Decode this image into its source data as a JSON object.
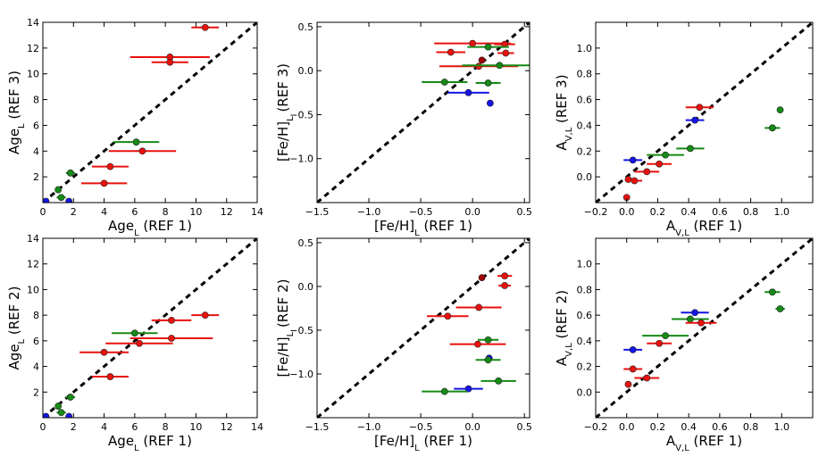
{
  "colors": {
    "red": "#e8120e",
    "green": "#168a16",
    "blue": "#1515e8",
    "darkred": "#a00000",
    "line": "#000000"
  },
  "chart_data": [
    {
      "type": "scatter",
      "xlabel": "Age_L (REF 1)",
      "ylabel": "Age_L (REF 3)",
      "xlim": [
        0,
        14
      ],
      "ylim": [
        0,
        14
      ],
      "xticks": [
        "0",
        "2",
        "4",
        "6",
        "8",
        "10",
        "12",
        "14"
      ],
      "yticks": [
        "2",
        "4",
        "6",
        "8",
        "10",
        "12",
        "14"
      ],
      "points": [
        {
          "x": 10.6,
          "y": 13.6,
          "xerr": 0.9,
          "color": "red"
        },
        {
          "x": 8.3,
          "y": 11.3,
          "xerr": 2.6,
          "color": "red"
        },
        {
          "x": 8.3,
          "y": 10.9,
          "xerr": 1.2,
          "color": "red"
        },
        {
          "x": 6.1,
          "y": 4.7,
          "xerr": 1.5,
          "color": "green"
        },
        {
          "x": 6.5,
          "y": 4.0,
          "xerr": 2.2,
          "color": "red"
        },
        {
          "x": 4.4,
          "y": 2.8,
          "xerr": 1.2,
          "color": "red"
        },
        {
          "x": 4.0,
          "y": 1.5,
          "xerr": 1.5,
          "color": "red"
        },
        {
          "x": 1.8,
          "y": 2.3,
          "xerr": 0.3,
          "color": "green"
        },
        {
          "x": 1.0,
          "y": 1.0,
          "xerr": 0.2,
          "color": "green"
        },
        {
          "x": 1.2,
          "y": 0.4,
          "xerr": 0.3,
          "color": "green"
        },
        {
          "x": 1.7,
          "y": 0.1,
          "xerr": 0.1,
          "color": "blue"
        },
        {
          "x": 0.2,
          "y": 0.1,
          "xerr": 0,
          "color": "blue"
        }
      ]
    },
    {
      "type": "scatter",
      "xlabel": "[Fe/H]_L (REF 1)",
      "ylabel": "[Fe/H]_L (REF 3)",
      "xlim": [
        -1.5,
        0.55
      ],
      "ylim": [
        -1.5,
        0.55
      ],
      "xticks": [
        "-1.5",
        "-1.0",
        "-0.5",
        "0.0",
        "0.5"
      ],
      "yticks": [
        "-1.0",
        "-0.5",
        "0.0",
        "0.5"
      ],
      "points": [
        {
          "x": 0.0,
          "y": 0.31,
          "xerr": 0.37,
          "color": "red"
        },
        {
          "x": 0.31,
          "y": 0.3,
          "xerr": 0.1,
          "color": "red"
        },
        {
          "x": 0.15,
          "y": 0.27,
          "xerr": 0.2,
          "color": "green"
        },
        {
          "x": -0.21,
          "y": 0.21,
          "xerr": 0.14,
          "color": "red"
        },
        {
          "x": 0.32,
          "y": 0.2,
          "xerr": 0.08,
          "color": "red"
        },
        {
          "x": 0.09,
          "y": 0.12,
          "xerr": 0,
          "color": "darkred"
        },
        {
          "x": 0.06,
          "y": 0.05,
          "xerr": 0.38,
          "color": "red"
        },
        {
          "x": 0.26,
          "y": 0.06,
          "xerr": 0.36,
          "color": "green"
        },
        {
          "x": -0.27,
          "y": -0.13,
          "xerr": 0.22,
          "color": "green"
        },
        {
          "x": 0.15,
          "y": -0.14,
          "xerr": 0.12,
          "color": "green"
        },
        {
          "x": -0.04,
          "y": -0.25,
          "xerr": 0.2,
          "color": "blue"
        },
        {
          "x": 0.17,
          "y": -0.37,
          "xerr": 0,
          "color": "blue"
        }
      ]
    },
    {
      "type": "scatter",
      "xlabel": "A_V,L (REF 1)",
      "ylabel": "A_V,L (REF 3)",
      "xlim": [
        -0.2,
        1.2
      ],
      "ylim": [
        -0.2,
        1.2
      ],
      "xticks": [
        "-0.2",
        "0.0",
        "0.2",
        "0.4",
        "0.6",
        "0.8",
        "1.0"
      ],
      "yticks": [
        "0.0",
        "0.2",
        "0.4",
        "0.6",
        "0.8",
        "1.0"
      ],
      "points": [
        {
          "x": 0.47,
          "y": 0.54,
          "xerr": 0.09,
          "color": "red"
        },
        {
          "x": 0.99,
          "y": 0.52,
          "xerr": 0.02,
          "color": "green"
        },
        {
          "x": 0.44,
          "y": 0.44,
          "xerr": 0.06,
          "color": "blue"
        },
        {
          "x": 0.94,
          "y": 0.38,
          "xerr": 0.05,
          "color": "green"
        },
        {
          "x": 0.41,
          "y": 0.22,
          "xerr": 0.09,
          "color": "green"
        },
        {
          "x": 0.25,
          "y": 0.17,
          "xerr": 0.12,
          "color": "green"
        },
        {
          "x": 0.04,
          "y": 0.13,
          "xerr": 0.06,
          "color": "blue"
        },
        {
          "x": 0.21,
          "y": 0.1,
          "xerr": 0.08,
          "color": "red"
        },
        {
          "x": 0.13,
          "y": 0.04,
          "xerr": 0.08,
          "color": "red"
        },
        {
          "x": 0.01,
          "y": -0.02,
          "xerr": 0.02,
          "color": "red"
        },
        {
          "x": 0.05,
          "y": -0.03,
          "xerr": 0.05,
          "color": "red"
        },
        {
          "x": 0.0,
          "y": -0.16,
          "xerr": 0,
          "color": "red"
        }
      ]
    },
    {
      "type": "scatter",
      "xlabel": "Age_L (REF 1)",
      "ylabel": "Age_L (REF 2)",
      "xlim": [
        0,
        14
      ],
      "ylim": [
        0,
        14
      ],
      "xticks": [
        "0",
        "2",
        "4",
        "6",
        "8",
        "10",
        "12",
        "14"
      ],
      "yticks": [
        "2",
        "4",
        "6",
        "8",
        "10",
        "12",
        "14"
      ],
      "points": [
        {
          "x": 10.6,
          "y": 8.0,
          "xerr": 0.9,
          "color": "red"
        },
        {
          "x": 8.4,
          "y": 7.6,
          "xerr": 1.3,
          "color": "red"
        },
        {
          "x": 6.0,
          "y": 6.6,
          "xerr": 1.5,
          "color": "green"
        },
        {
          "x": 8.4,
          "y": 6.2,
          "xerr": 2.7,
          "color": "red"
        },
        {
          "x": 6.3,
          "y": 5.8,
          "xerr": 2.2,
          "color": "red"
        },
        {
          "x": 4.0,
          "y": 5.1,
          "xerr": 1.6,
          "color": "red"
        },
        {
          "x": 4.4,
          "y": 3.2,
          "xerr": 1.2,
          "color": "red"
        },
        {
          "x": 1.8,
          "y": 1.6,
          "xerr": 0.3,
          "color": "green"
        },
        {
          "x": 1.0,
          "y": 0.9,
          "xerr": 0.2,
          "color": "green"
        },
        {
          "x": 1.2,
          "y": 0.4,
          "xerr": 0.3,
          "color": "green"
        },
        {
          "x": 1.7,
          "y": 0.1,
          "xerr": 0.1,
          "color": "blue"
        },
        {
          "x": 0.2,
          "y": 0.1,
          "xerr": 0,
          "color": "blue"
        }
      ]
    },
    {
      "type": "scatter",
      "xlabel": "[Fe/H]_L (REF 1)",
      "ylabel": "[Fe/H]_L (REF 2)",
      "xlim": [
        -1.5,
        0.55
      ],
      "ylim": [
        -1.5,
        0.55
      ],
      "xticks": [
        "-1.5",
        "-1.0",
        "-0.5",
        "0.0",
        "0.5"
      ],
      "yticks": [
        "-1.0",
        "-0.5",
        "0.0",
        "0.5"
      ],
      "points": [
        {
          "x": 0.31,
          "y": 0.12,
          "xerr": 0.07,
          "color": "red"
        },
        {
          "x": 0.09,
          "y": 0.1,
          "xerr": 0,
          "color": "darkred"
        },
        {
          "x": 0.31,
          "y": 0.01,
          "xerr": 0.06,
          "color": "red"
        },
        {
          "x": 0.06,
          "y": -0.24,
          "xerr": 0.22,
          "color": "red"
        },
        {
          "x": -0.24,
          "y": -0.34,
          "xerr": 0.2,
          "color": "red"
        },
        {
          "x": 0.15,
          "y": -0.61,
          "xerr": 0.1,
          "color": "green"
        },
        {
          "x": 0.05,
          "y": -0.66,
          "xerr": 0.27,
          "color": "red"
        },
        {
          "x": 0.16,
          "y": -0.82,
          "xerr": 0.03,
          "color": "blue"
        },
        {
          "x": 0.15,
          "y": -0.84,
          "xerr": 0.12,
          "color": "green"
        },
        {
          "x": 0.25,
          "y": -1.08,
          "xerr": 0.17,
          "color": "green"
        },
        {
          "x": -0.04,
          "y": -1.17,
          "xerr": 0.14,
          "color": "blue"
        },
        {
          "x": -0.27,
          "y": -1.2,
          "xerr": 0.22,
          "color": "green"
        }
      ]
    },
    {
      "type": "scatter",
      "xlabel": "A_V,L (REF 1)",
      "ylabel": "A_V,L (REF 2)",
      "xlim": [
        -0.2,
        1.2
      ],
      "ylim": [
        -0.2,
        1.2
      ],
      "xticks": [
        "-0.2",
        "0.0",
        "0.2",
        "0.4",
        "0.6",
        "0.8",
        "1.0"
      ],
      "yticks": [
        "0.0",
        "0.2",
        "0.4",
        "0.6",
        "0.8",
        "1.0"
      ],
      "points": [
        {
          "x": 0.94,
          "y": 0.78,
          "xerr": 0.05,
          "color": "green"
        },
        {
          "x": 0.99,
          "y": 0.65,
          "xerr": 0.03,
          "color": "green"
        },
        {
          "x": 0.44,
          "y": 0.62,
          "xerr": 0.09,
          "color": "blue"
        },
        {
          "x": 0.41,
          "y": 0.57,
          "xerr": 0.12,
          "color": "green"
        },
        {
          "x": 0.48,
          "y": 0.54,
          "xerr": 0.1,
          "color": "red"
        },
        {
          "x": 0.25,
          "y": 0.44,
          "xerr": 0.15,
          "color": "green"
        },
        {
          "x": 0.21,
          "y": 0.38,
          "xerr": 0.08,
          "color": "red"
        },
        {
          "x": 0.04,
          "y": 0.33,
          "xerr": 0.06,
          "color": "blue"
        },
        {
          "x": 0.04,
          "y": 0.18,
          "xerr": 0.06,
          "color": "red"
        },
        {
          "x": 0.13,
          "y": 0.11,
          "xerr": 0.08,
          "color": "red"
        },
        {
          "x": 0.01,
          "y": 0.06,
          "xerr": 0.01,
          "color": "red"
        }
      ]
    }
  ]
}
